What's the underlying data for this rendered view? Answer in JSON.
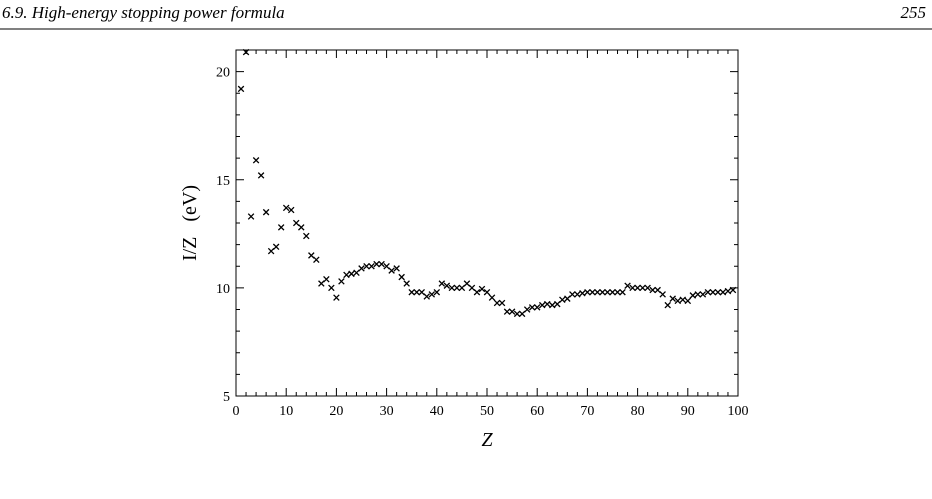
{
  "header": {
    "section": "6.9. High-energy stopping power formula",
    "page": "255"
  },
  "chart_data": {
    "type": "scatter",
    "marker": "×",
    "x_label": "Z",
    "y_label": "I/Z   (eV)",
    "x": [
      1,
      2,
      3,
      4,
      5,
      6,
      7,
      8,
      9,
      10,
      11,
      12,
      13,
      14,
      15,
      16,
      17,
      18,
      19,
      20,
      21,
      22,
      23,
      24,
      25,
      26,
      27,
      28,
      29,
      30,
      31,
      32,
      33,
      34,
      35,
      36,
      37,
      38,
      39,
      40,
      41,
      42,
      43,
      44,
      45,
      46,
      47,
      48,
      49,
      50,
      51,
      52,
      53,
      54,
      55,
      56,
      57,
      58,
      59,
      60,
      61,
      62,
      63,
      64,
      65,
      66,
      67,
      68,
      69,
      70,
      71,
      72,
      73,
      74,
      75,
      76,
      77,
      78,
      79,
      80,
      81,
      82,
      83,
      84,
      85,
      86,
      87,
      88,
      89,
      90,
      91,
      92,
      93,
      94,
      95,
      96,
      97,
      98,
      99
    ],
    "values": [
      19.2,
      20.9,
      13.3,
      15.9,
      15.2,
      13.5,
      11.7,
      11.9,
      12.8,
      13.7,
      13.6,
      13.0,
      12.8,
      12.4,
      11.5,
      11.3,
      10.2,
      10.4,
      10.0,
      9.55,
      10.3,
      10.6,
      10.65,
      10.7,
      10.9,
      11.0,
      11.0,
      11.1,
      11.1,
      11.0,
      10.8,
      10.9,
      10.5,
      10.2,
      9.8,
      9.8,
      9.8,
      9.6,
      9.7,
      9.8,
      10.2,
      10.1,
      10.0,
      10.0,
      10.0,
      10.2,
      10.0,
      9.8,
      9.95,
      9.8,
      9.55,
      9.3,
      9.3,
      8.9,
      8.9,
      8.8,
      8.8,
      9.0,
      9.1,
      9.1,
      9.2,
      9.25,
      9.2,
      9.25,
      9.45,
      9.5,
      9.7,
      9.7,
      9.75,
      9.8,
      9.8,
      9.8,
      9.8,
      9.8,
      9.8,
      9.8,
      9.8,
      10.1,
      10.0,
      10.0,
      10.0,
      10.0,
      9.9,
      9.9,
      9.7,
      9.2,
      9.5,
      9.4,
      9.45,
      9.4,
      9.65,
      9.7,
      9.7,
      9.8,
      9.8,
      9.8,
      9.8,
      9.85,
      9.9
    ],
    "color": "#000000",
    "xlim": [
      0,
      100
    ],
    "ylim": [
      5,
      21
    ],
    "xticks": [
      0,
      10,
      20,
      30,
      40,
      50,
      60,
      70,
      80,
      90,
      100
    ],
    "yticks": [
      5,
      10,
      15,
      20
    ],
    "xminorticks": [
      2,
      4,
      6,
      8,
      12,
      14,
      16,
      18,
      22,
      24,
      26,
      28,
      32,
      34,
      36,
      38,
      42,
      44,
      46,
      48,
      52,
      54,
      56,
      58,
      62,
      64,
      66,
      68,
      72,
      74,
      76,
      78,
      82,
      84,
      86,
      88,
      92,
      94,
      96,
      98
    ],
    "yminorticks": [
      6,
      7,
      8,
      9,
      11,
      12,
      13,
      14,
      16,
      17,
      18,
      19,
      21
    ]
  }
}
